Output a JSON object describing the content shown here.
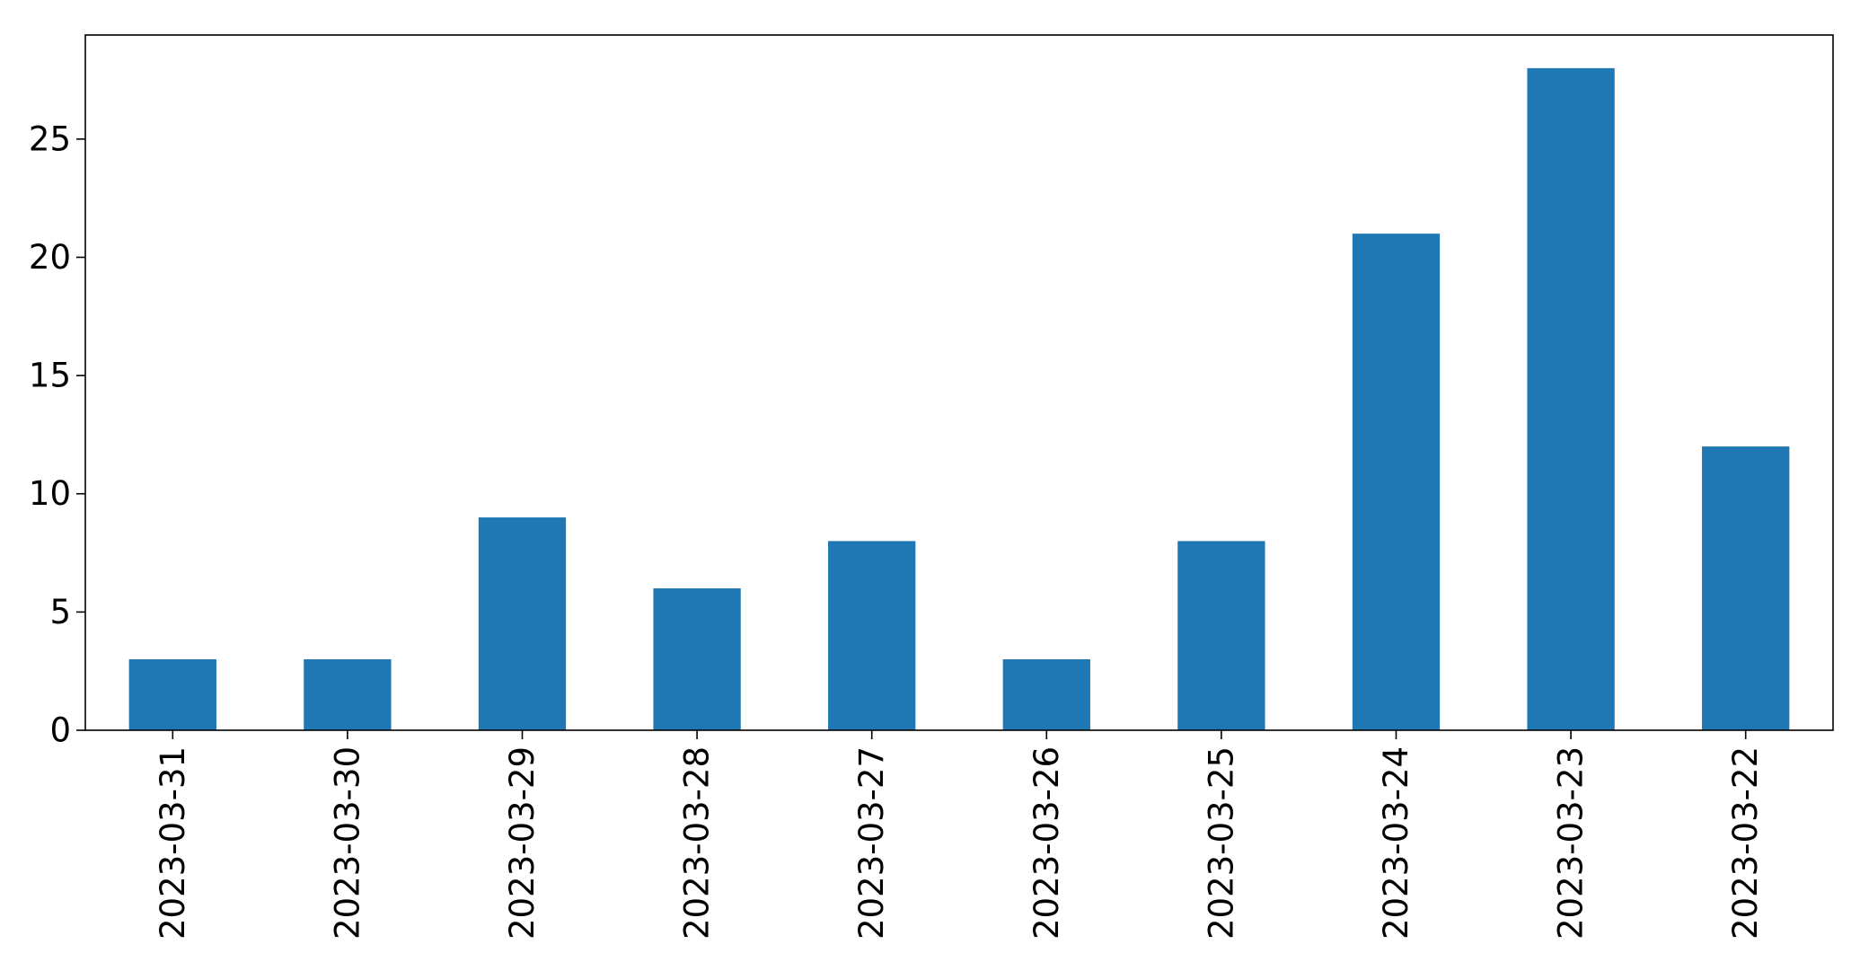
{
  "chart_data": {
    "type": "bar",
    "title": "",
    "xlabel": "",
    "ylabel": "",
    "categories": [
      "2023-03-31",
      "2023-03-30",
      "2023-03-29",
      "2023-03-28",
      "2023-03-27",
      "2023-03-26",
      "2023-03-25",
      "2023-03-24",
      "2023-03-23",
      "2023-03-22"
    ],
    "values": [
      3,
      3,
      9,
      6,
      8,
      3,
      8,
      21,
      28,
      12
    ],
    "ylim": [
      0,
      29.4
    ],
    "yticks": [
      0,
      5,
      10,
      15,
      20,
      25
    ],
    "grid": false,
    "legend": "none",
    "bar_color": "#1f77b4",
    "axis_color": "#000000"
  }
}
